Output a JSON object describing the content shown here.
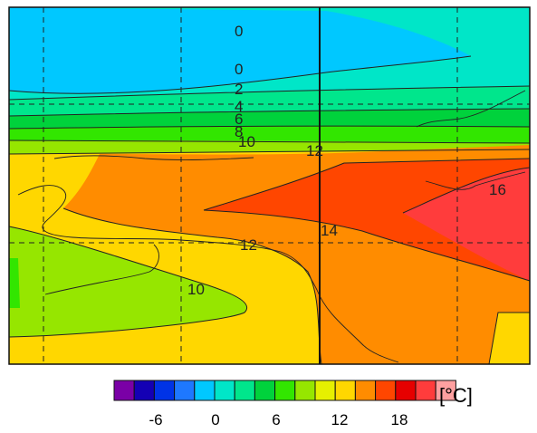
{
  "colorbar": {
    "unit_label": "[°C]",
    "colors": [
      "#7a00a6",
      "#1400b4",
      "#0033e6",
      "#1e78ff",
      "#00c8ff",
      "#00e6c8",
      "#00e68c",
      "#00d23c",
      "#32e600",
      "#96e600",
      "#e6f000",
      "#ffd700",
      "#ff8c00",
      "#ff4600",
      "#e60000",
      "#ff3c3c",
      "#ffa0a0"
    ],
    "tick_labels": [
      "-6",
      "0",
      "6",
      "12",
      "18"
    ]
  },
  "contour_labels": [
    "0",
    "0",
    "2",
    "4",
    "6",
    "8",
    "10",
    "12",
    "14",
    "16",
    "12",
    "10"
  ],
  "map": {
    "gridlines": "dashed",
    "regions": [
      {
        "name": "cold-band",
        "color": "#00c8ff"
      },
      {
        "name": "cool-band",
        "color": "#00e6c8"
      },
      {
        "name": "mid-band",
        "color": "#00d23c"
      },
      {
        "name": "warm-band",
        "color": "#96e600"
      },
      {
        "name": "land-yellow",
        "color": "#ffd700"
      },
      {
        "name": "land-orange",
        "color": "#ff8c00"
      },
      {
        "name": "land-red",
        "color": "#ff4600"
      },
      {
        "name": "land-hot",
        "color": "#ff3c3c"
      }
    ]
  }
}
